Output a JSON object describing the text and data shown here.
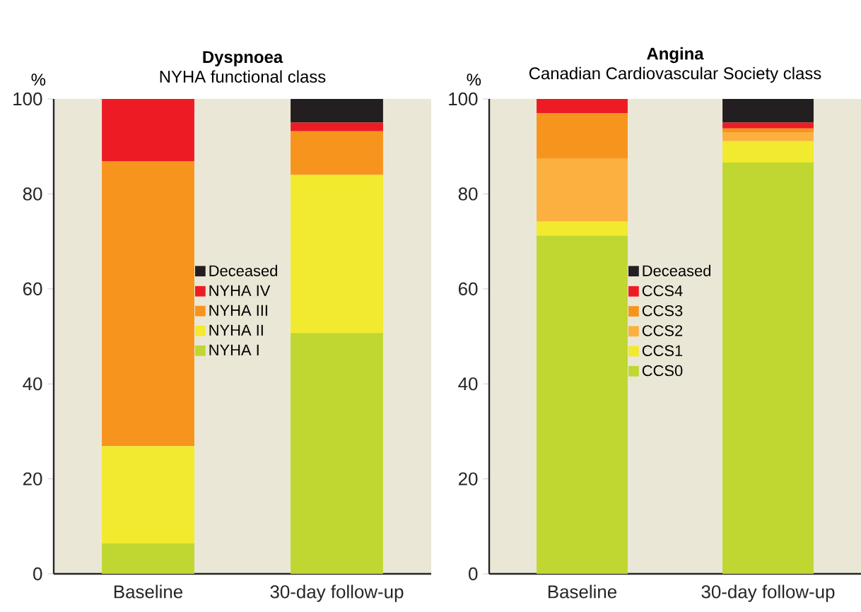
{
  "chart_data": [
    {
      "type": "bar",
      "stacked": true,
      "title": "Dyspnoea",
      "subtitle": "NYHA functional class",
      "ylabel": "%",
      "categories": [
        "Baseline",
        "30-day follow-up"
      ],
      "ylim": [
        0,
        100
      ],
      "yticks": [
        0,
        20,
        40,
        60,
        80,
        100
      ],
      "legend": "center",
      "series": [
        {
          "name": "NYHA I",
          "color": "#bfd730",
          "values": [
            6.4,
            50.7
          ]
        },
        {
          "name": "NYHA II",
          "color": "#f2ea2e",
          "values": [
            20.5,
            33.3
          ]
        },
        {
          "name": "NYHA III",
          "color": "#f7941d",
          "values": [
            60,
            9.2
          ]
        },
        {
          "name": "NYHA IV",
          "color": "#ed1c24",
          "values": [
            13.1,
            1.8
          ]
        },
        {
          "name": "Deceased",
          "color": "#231f20",
          "values": [
            0,
            5.0
          ]
        }
      ]
    },
    {
      "type": "bar",
      "stacked": true,
      "title": "Angina",
      "subtitle": "Canadian Cardiovascular Society class",
      "ylabel": "%",
      "categories": [
        "Baseline",
        "30-day follow-up"
      ],
      "ylim": [
        0,
        100
      ],
      "yticks": [
        0,
        20,
        40,
        60,
        80,
        100
      ],
      "legend": "center",
      "series": [
        {
          "name": "CCS0",
          "color": "#bfd730",
          "values": [
            71.2,
            86.6
          ]
        },
        {
          "name": "CCS1",
          "color": "#f2ea2e",
          "values": [
            3.0,
            4.5
          ]
        },
        {
          "name": "CCS2",
          "color": "#fbb040",
          "values": [
            13.3,
            1.9
          ]
        },
        {
          "name": "CCS3",
          "color": "#f7941d",
          "values": [
            9.5,
            0.8
          ]
        },
        {
          "name": "CCS4",
          "color": "#ed1c24",
          "values": [
            3.0,
            1.2
          ]
        },
        {
          "name": "Deceased",
          "color": "#231f20",
          "values": [
            0,
            5.0
          ]
        }
      ]
    }
  ]
}
